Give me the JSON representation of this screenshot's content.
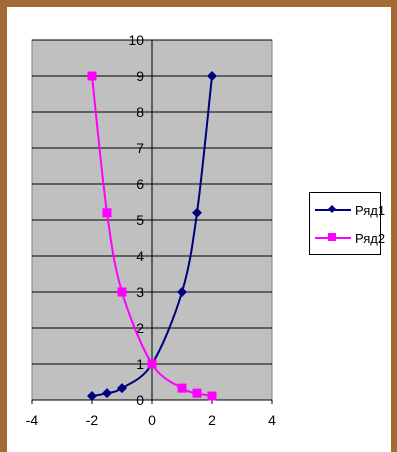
{
  "chart_data": {
    "type": "scatter",
    "title": "",
    "xlabel": "",
    "ylabel": "",
    "xlim": [
      -4,
      4
    ],
    "ylim": [
      0,
      10
    ],
    "x_ticks": [
      "-4",
      "-2",
      "0",
      "2",
      "4"
    ],
    "y_ticks": [
      "0",
      "1",
      "2",
      "3",
      "4",
      "5",
      "6",
      "7",
      "8",
      "9",
      "10"
    ],
    "grid": "horizontal",
    "plot_background": "#c0c0c0",
    "legend_position": "right",
    "series": [
      {
        "name": "Ряд1",
        "color": "#000080",
        "marker": "diamond",
        "smooth": true,
        "x": [
          -2,
          -1.5,
          -1,
          0,
          1,
          1.5,
          2
        ],
        "y": [
          0.11,
          0.19,
          0.33,
          1,
          3,
          5.2,
          9
        ]
      },
      {
        "name": "Ряд2",
        "color": "#ff00ff",
        "marker": "square",
        "smooth": true,
        "x": [
          -2,
          -1.5,
          -1,
          0,
          1,
          1.5,
          2
        ],
        "y": [
          9,
          5.2,
          3,
          1,
          0.33,
          0.19,
          0.11
        ]
      }
    ]
  }
}
